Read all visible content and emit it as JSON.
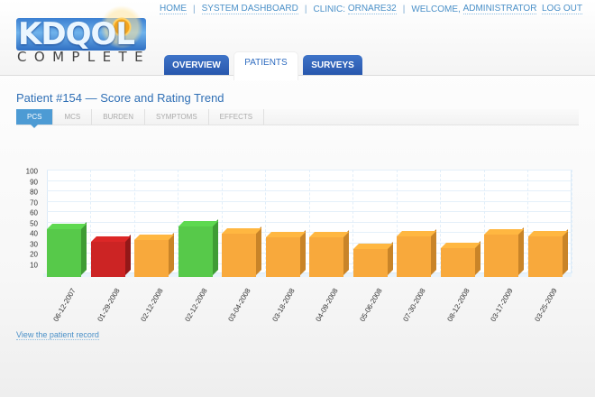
{
  "logo": {
    "letters": "KDQOL",
    "subtitle": "COMPLETE"
  },
  "topnav": {
    "home": "HOME",
    "dashboard": "SYSTEM DASHBOARD",
    "clinic_label": "CLINIC:",
    "clinic_value": "ORNARE32",
    "welcome_label": "WELCOME,",
    "welcome_user": "ADMINISTRATOR",
    "logout": "LOG OUT"
  },
  "maintabs": [
    {
      "label": "OVERVIEW",
      "active": false
    },
    {
      "label": "PATIENTS",
      "active": true
    },
    {
      "label": "SURVEYS",
      "active": false
    }
  ],
  "page": {
    "title": "Patient #154 — Score and Rating Trend"
  },
  "subtabs": [
    {
      "label": "PCS",
      "active": true
    },
    {
      "label": "MCS",
      "active": false
    },
    {
      "label": "BURDEN",
      "active": false
    },
    {
      "label": "SYMPTOMS",
      "active": false
    },
    {
      "label": "EFFECTS",
      "active": false
    }
  ],
  "colors": {
    "green": "#57c94a",
    "green_side": "#3f9c35",
    "red": "#cc2424",
    "red_side": "#931818",
    "orange": "#f8a93c",
    "orange_side": "#c98428",
    "accent": "#4d9bd4",
    "nav_blue": "#2857ad"
  },
  "chart_data": {
    "type": "bar",
    "title": "Patient #154 — Score and Rating Trend (PCS)",
    "xlabel": "",
    "ylabel": "",
    "ylim": [
      0,
      100
    ],
    "yticks": [
      10,
      20,
      30,
      40,
      50,
      60,
      70,
      80,
      90,
      100
    ],
    "grid": true,
    "categories": [
      "06-12-2007",
      "01-29-2008",
      "02-12-2008",
      "02-12-2008",
      "03-04-2008",
      "03-18-2008",
      "04-09-2008",
      "05-06-2008",
      "07-30-2008",
      "08-12-2008",
      "03-17-2009",
      "03-25-2009"
    ],
    "values": [
      46,
      34,
      36,
      49,
      42,
      38,
      38,
      27,
      39,
      28,
      41,
      39
    ],
    "bar_colors": [
      "green",
      "red",
      "orange",
      "green",
      "orange",
      "orange",
      "orange",
      "orange",
      "orange",
      "orange",
      "orange",
      "orange"
    ]
  },
  "footer": {
    "record_link": "View the patient record"
  }
}
